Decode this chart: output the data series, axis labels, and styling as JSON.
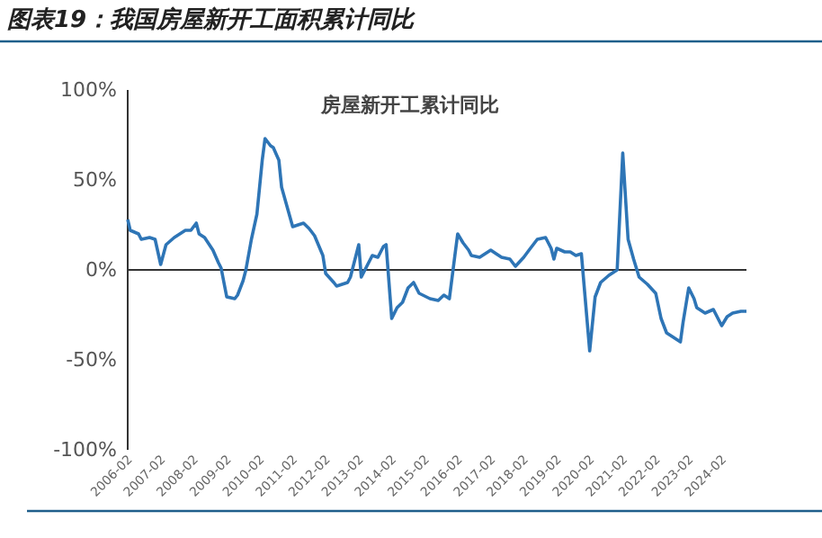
{
  "chart_data": {
    "type": "line",
    "title": "图表19：我国房屋新开工面积累计同比",
    "subtitle": "房屋新开工累计同比",
    "x": [
      "2006-02",
      "2006-03",
      "2006-06",
      "2006-07",
      "2006-10",
      "2006-12",
      "2007-02",
      "2007-04",
      "2007-07",
      "2007-11",
      "2008-01",
      "2008-03",
      "2008-04",
      "2008-06",
      "2008-09",
      "2008-11",
      "2008-12",
      "2009-02",
      "2009-05",
      "2009-06",
      "2009-08",
      "2009-09",
      "2009-11",
      "2010-01",
      "2010-03",
      "2010-04",
      "2010-06",
      "2010-07",
      "2010-09",
      "2010-10",
      "2011-02",
      "2011-04",
      "2011-06",
      "2011-08",
      "2011-10",
      "2012-01",
      "2012-02",
      "2012-05",
      "2012-06",
      "2012-08",
      "2012-10",
      "2012-11",
      "2013-02",
      "2013-03",
      "2013-05",
      "2013-07",
      "2013-09",
      "2013-11",
      "2013-12",
      "2014-02",
      "2014-04",
      "2014-06",
      "2014-08",
      "2014-10",
      "2014-12",
      "2015-04",
      "2015-07",
      "2015-09",
      "2015-11",
      "2016-01",
      "2016-02",
      "2016-04",
      "2016-06",
      "2016-07",
      "2016-10",
      "2017-02",
      "2017-04",
      "2017-06",
      "2017-09",
      "2017-11",
      "2018-02",
      "2018-04",
      "2018-07",
      "2018-10",
      "2018-12",
      "2019-01",
      "2019-02",
      "2019-05",
      "2019-07",
      "2019-09",
      "2019-11",
      "2020-02",
      "2020-04",
      "2020-06",
      "2020-09",
      "2020-12",
      "2021-02",
      "2021-04",
      "2021-06",
      "2021-08",
      "2021-11",
      "2022-02",
      "2022-04",
      "2022-06",
      "2022-08",
      "2022-11",
      "2022-12",
      "2023-02",
      "2023-04",
      "2023-05",
      "2023-08",
      "2023-11",
      "2024-02",
      "2024-04",
      "2024-06",
      "2024-09",
      "2024-11"
    ],
    "series": [
      {
        "color": "#2e75b6",
        "values": [
          28,
          22,
          20,
          17,
          18,
          17,
          3,
          14,
          18,
          22,
          22,
          26,
          20,
          18,
          11,
          4,
          1,
          -15,
          -16,
          -14,
          -6,
          0,
          17,
          31,
          61,
          73,
          69,
          68,
          61,
          46,
          24,
          25,
          26,
          23,
          19,
          8,
          -2,
          -7,
          -9,
          -8,
          -7,
          -4,
          14,
          -4,
          2,
          8,
          7,
          13,
          14,
          -27,
          -21,
          -18,
          -10,
          -7,
          -13,
          -16,
          -17,
          -14,
          -16,
          8,
          20,
          15,
          11,
          8,
          7,
          11,
          9,
          7,
          6,
          2,
          7,
          11,
          17,
          18,
          12,
          6,
          12,
          10,
          10,
          8,
          9,
          -45,
          -15,
          -7,
          -3,
          0,
          65,
          17,
          6,
          -4,
          -8,
          -13,
          -27,
          -35,
          -37,
          -40,
          -29,
          -10,
          -16,
          -21,
          -24,
          -22,
          -31,
          -26,
          -24,
          -23,
          -23
        ]
      }
    ],
    "xlim": [
      "2006-02",
      "2024-11"
    ],
    "xticks": [
      "2006-02",
      "2007-02",
      "2008-02",
      "2009-02",
      "2010-02",
      "2011-02",
      "2012-02",
      "2013-02",
      "2014-02",
      "2015-02",
      "2016-02",
      "2017-02",
      "2018-02",
      "2019-02",
      "2020-02",
      "2021-02",
      "2022-02",
      "2023-02",
      "2024-02"
    ],
    "ylim": [
      -100,
      100
    ],
    "yticks": [
      {
        "value": -100,
        "label": "-100%"
      },
      {
        "value": -50,
        "label": "-50%"
      },
      {
        "value": 0,
        "label": "0%"
      },
      {
        "value": 50,
        "label": "50%"
      },
      {
        "value": 100,
        "label": "100%"
      }
    ],
    "ref_lines": [
      {
        "axis": "y",
        "value": 0,
        "color": "#333333"
      }
    ],
    "marker": "none",
    "line_style": "solid"
  }
}
